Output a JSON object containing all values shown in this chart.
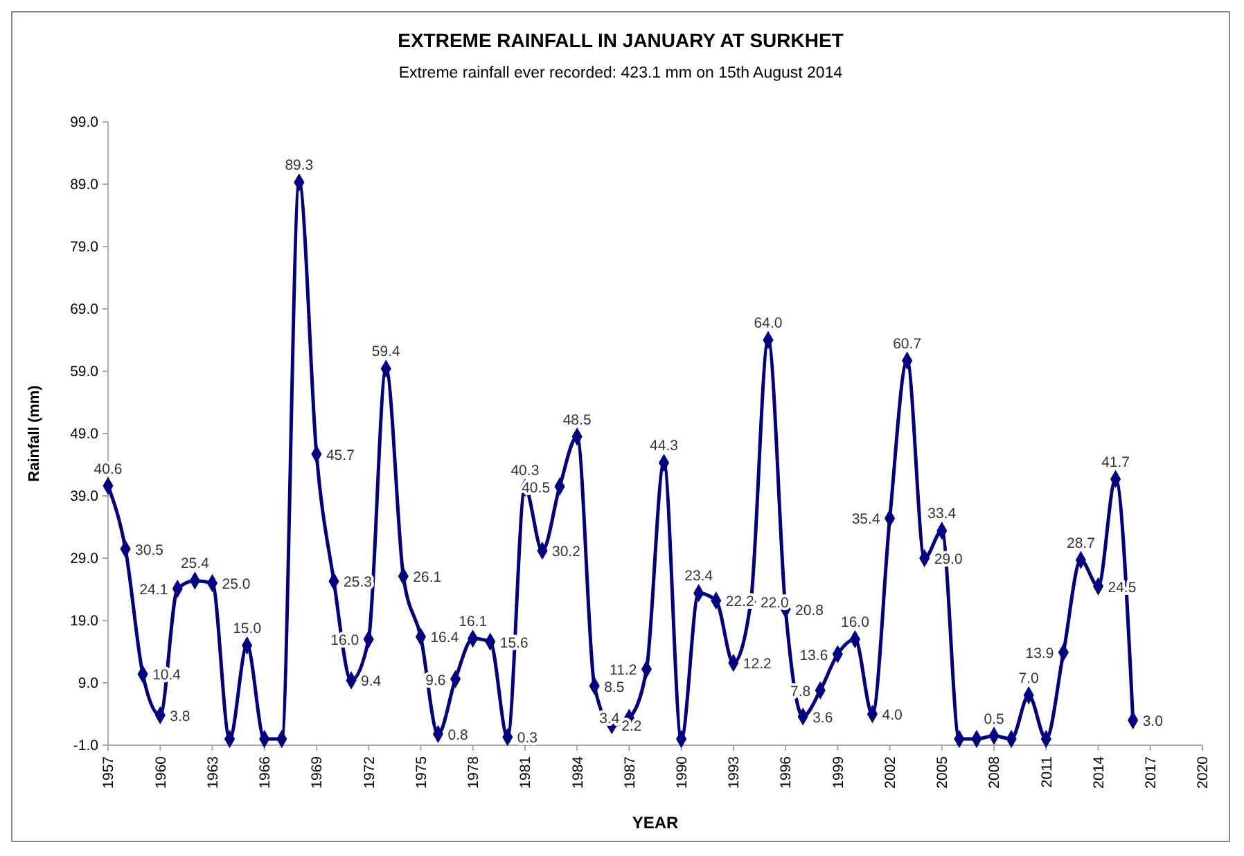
{
  "chart_data": {
    "type": "line",
    "title": "EXTREME RAINFALL IN JANUARY AT SURKHET",
    "subtitle": "Extreme rainfall ever recorded: 423.1 mm on 15th August 2014",
    "xlabel": "YEAR",
    "ylabel": "Rainfall (mm)",
    "x": [
      1957,
      1958,
      1959,
      1960,
      1961,
      1962,
      1963,
      1964,
      1965,
      1966,
      1967,
      1968,
      1969,
      1970,
      1971,
      1972,
      1973,
      1974,
      1975,
      1976,
      1977,
      1978,
      1979,
      1980,
      1981,
      1982,
      1983,
      1984,
      1985,
      1986,
      1987,
      1988,
      1989,
      1990,
      1991,
      1992,
      1993,
      1994,
      1995,
      1996,
      1997,
      1998,
      1999,
      2000,
      2001,
      2002,
      2003,
      2004,
      2005,
      2006,
      2007,
      2008,
      2009,
      2010,
      2011,
      2012,
      2013,
      2014,
      2015,
      2016
    ],
    "series": [
      {
        "color": "#000080",
        "values": [
          40.6,
          30.5,
          10.4,
          3.8,
          24.1,
          25.4,
          25.0,
          0,
          15.0,
          0,
          0,
          89.3,
          45.7,
          25.3,
          9.4,
          16.0,
          59.4,
          26.1,
          16.4,
          0.8,
          9.6,
          16.1,
          15.6,
          0.3,
          40.3,
          30.2,
          40.5,
          48.5,
          8.5,
          2.2,
          3.4,
          11.2,
          44.3,
          0,
          23.4,
          22.2,
          12.2,
          22.0,
          64.0,
          20.8,
          3.6,
          7.8,
          13.6,
          16.0,
          4.0,
          35.4,
          60.7,
          29.0,
          33.4,
          0,
          0,
          0.5,
          0,
          7.0,
          0,
          13.9,
          28.7,
          24.5,
          41.7,
          3.0
        ],
        "value_labels": [
          "40.6",
          "30.5",
          "10.4",
          "3.8",
          "24.1",
          "25.4",
          "25.0",
          null,
          "15.0",
          null,
          null,
          "89.3",
          "45.7",
          "25.3",
          "9.4",
          "16.0",
          "59.4",
          "26.1",
          "16.4",
          "0.8",
          "9.6",
          "16.1",
          "15.6",
          "0.3",
          "40.3",
          "30.2",
          "40.5",
          "48.5",
          "8.5",
          "2.2",
          "3.4",
          "11.2",
          "44.3",
          null,
          "23.4",
          "22.2",
          "12.2",
          "22.0",
          "64.0",
          "20.8",
          "3.6",
          "7.8",
          "13.6",
          "16.0",
          "4.0",
          "35.4",
          "60.7",
          "29.0",
          "33.4",
          null,
          null,
          "0.5",
          null,
          "7.0",
          null,
          "13.9",
          "28.7",
          "24.5",
          "41.7",
          "3.0"
        ]
      }
    ],
    "xlim": [
      1957,
      2020
    ],
    "xticks": [
      1957,
      1960,
      1963,
      1966,
      1969,
      1972,
      1975,
      1978,
      1981,
      1984,
      1987,
      1990,
      1993,
      1996,
      1999,
      2002,
      2005,
      2008,
      2011,
      2014,
      2017,
      2020
    ],
    "ylim": [
      -1,
      99
    ],
    "yticks": [
      {
        "value": -1,
        "label": "-1.0"
      },
      {
        "value": 9,
        "label": "9.0"
      },
      {
        "value": 19,
        "label": "19.0"
      },
      {
        "value": 29,
        "label": "29.0"
      },
      {
        "value": 39,
        "label": "39.0"
      },
      {
        "value": 49,
        "label": "49.0"
      },
      {
        "value": 59,
        "label": "59.0"
      },
      {
        "value": 69,
        "label": "69.0"
      },
      {
        "value": 79,
        "label": "79.0"
      },
      {
        "value": 89,
        "label": "89.0"
      },
      {
        "value": 99,
        "label": "99.0"
      }
    ],
    "marker": "diamond",
    "line_style": "solid",
    "grid": false
  }
}
